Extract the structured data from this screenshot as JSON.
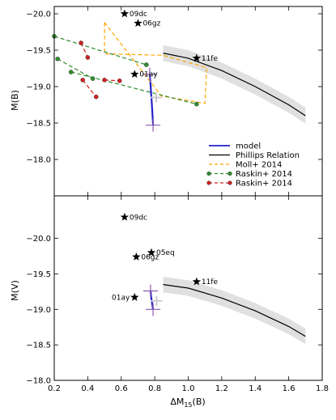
{
  "chart_data": [
    {
      "type": "line",
      "ylabel": "M(B)",
      "xlim": [
        0.2,
        1.8
      ],
      "ylim": [
        -17.5,
        -20.1
      ],
      "y_inverted": true,
      "yticks": [
        -20.0,
        -19.5,
        -19.0,
        -18.5,
        -18.0
      ],
      "ytick_labels": [
        "−20.0",
        "−19.5",
        "−19.0",
        "−18.5",
        "−18.0"
      ],
      "xticks": [
        0.2,
        0.4,
        0.6,
        0.8,
        1.0,
        1.2,
        1.4,
        1.6,
        1.8
      ],
      "series": [
        {
          "name": "model",
          "color": "#2222cc",
          "style": "solid",
          "x": [
            0.77,
            0.775,
            0.78,
            0.785,
            0.79
          ],
          "y": [
            -19.17,
            -19.02,
            -18.85,
            -18.68,
            -18.47
          ]
        },
        {
          "name": "Phillips Relation",
          "color": "#000000",
          "style": "solid",
          "band": true,
          "x": [
            0.85,
            1.0,
            1.2,
            1.4,
            1.6,
            1.7
          ],
          "y": [
            -19.46,
            -19.39,
            -19.22,
            -19.0,
            -18.75,
            -18.6
          ]
        },
        {
          "name": "Moll+ 2014",
          "color": "#ffa500",
          "style": "dashed",
          "x": [
            0.5,
            0.5,
            0.85,
            1.11,
            1.1,
            0.84,
            0.5
          ],
          "y": [
            -19.88,
            -19.45,
            -19.43,
            -19.26,
            -18.77,
            -18.87,
            -19.88
          ]
        },
        {
          "name": "Raskin+ 2014",
          "color": "#2e8b2e",
          "style": "dashed",
          "marker": "circle",
          "segments": [
            {
              "x": [
                0.2,
                0.75
              ],
              "y": [
                -19.69,
                -19.3
              ]
            },
            {
              "x": [
                0.22,
                0.43
              ],
              "y": [
                -19.38,
                -19.11
              ]
            },
            {
              "x": [
                0.3,
                1.05
              ],
              "y": [
                -19.2,
                -18.76
              ]
            }
          ]
        },
        {
          "name": "Raskin+ 2014",
          "color": "#cc2222",
          "style": "dashed",
          "marker": "circle",
          "segments": [
            {
              "x": [
                0.36,
                0.4
              ],
              "y": [
                -19.6,
                -19.4
              ]
            },
            {
              "x": [
                0.37,
                0.45
              ],
              "y": [
                -19.09,
                -18.86
              ]
            },
            {
              "x": [
                0.5,
                0.59
              ],
              "y": [
                -19.09,
                -19.08
              ]
            }
          ]
        }
      ],
      "points": [
        {
          "label": "09dc",
          "x": 0.62,
          "y": -20.0
        },
        {
          "label": "06gz",
          "x": 0.7,
          "y": -19.87
        },
        {
          "label": "11fe",
          "x": 1.05,
          "y": -19.39
        },
        {
          "label": "01ay",
          "x": 0.68,
          "y": -19.17
        }
      ],
      "legend_position": "lower-right"
    },
    {
      "type": "line",
      "ylabel": "M(V)",
      "xlabel": "ΔM15(B)",
      "xlabel_main": "ΔM",
      "xlabel_sub": "15",
      "xlabel_tail": "(B)",
      "xlim": [
        0.2,
        1.8
      ],
      "ylim": [
        -18.0,
        -20.6
      ],
      "y_inverted": true,
      "yticks": [
        -20.0,
        -19.5,
        -19.0,
        -18.5,
        -18.0
      ],
      "ytick_labels": [
        "−20.0",
        "−19.5",
        "−19.0",
        "−18.5",
        "−18.0"
      ],
      "xticks": [
        0.2,
        0.4,
        0.6,
        0.8,
        1.0,
        1.2,
        1.4,
        1.6,
        1.8
      ],
      "xtick_labels": [
        "0.2",
        "0.4",
        "0.6",
        "0.8",
        "1.0",
        "1.2",
        "1.4",
        "1.6",
        "1.8"
      ],
      "series": [
        {
          "name": "model",
          "color": "#2222cc",
          "style": "solid",
          "x": [
            0.775,
            0.778,
            0.782,
            0.786,
            0.79
          ],
          "y": [
            -19.26,
            -19.18,
            -19.12,
            -19.06,
            -19.0
          ]
        },
        {
          "name": "Phillips Relation",
          "color": "#000000",
          "style": "solid",
          "band": true,
          "x": [
            0.85,
            1.0,
            1.2,
            1.4,
            1.6,
            1.7
          ],
          "y": [
            -19.35,
            -19.3,
            -19.16,
            -18.98,
            -18.76,
            -18.62
          ]
        }
      ],
      "points": [
        {
          "label": "09dc",
          "x": 0.62,
          "y": -20.3
        },
        {
          "label": "05eq",
          "x": 0.78,
          "y": -19.8
        },
        {
          "label": "06gz",
          "x": 0.69,
          "y": -19.74
        },
        {
          "label": "11fe",
          "x": 1.05,
          "y": -19.39
        },
        {
          "label": "01ay",
          "x": 0.68,
          "y": -19.17
        }
      ]
    }
  ],
  "legend": [
    {
      "label": "model",
      "color": "#2222cc",
      "style": "solid"
    },
    {
      "label": "Phillips Relation",
      "color": "#000000",
      "style": "solid"
    },
    {
      "label": "Moll+ 2014",
      "color": "#ffa500",
      "style": "dashed"
    },
    {
      "label": "Raskin+ 2014",
      "color": "#2e8b2e",
      "style": "dashed-marker"
    },
    {
      "label": "Raskin+ 2014",
      "color": "#cc2222",
      "style": "dashed-marker"
    }
  ]
}
